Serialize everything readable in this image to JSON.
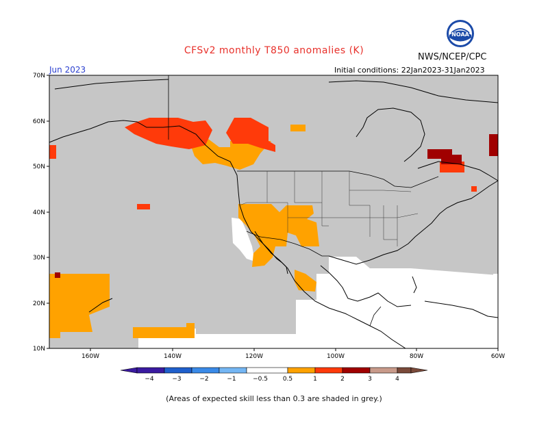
{
  "header": {
    "title": "CFSv2 monthly T850 anomalies (K)",
    "agency": "NWS/NCEP/CPC",
    "month": "Jun 2023",
    "initial_conditions": "Initial conditions: 22Jan2023-31Jan2023",
    "logo_text": "NOAA"
  },
  "map": {
    "lat_labels": [
      "70N",
      "60N",
      "50N",
      "40N",
      "30N",
      "20N",
      "10N"
    ],
    "lon_labels": [
      "160W",
      "140W",
      "120W",
      "100W",
      "80W",
      "60W"
    ],
    "colors": {
      "skill_mask": "#c6c6c6",
      "plus_0_5_1": "#ffa200",
      "plus_1_2": "#ff3a0a",
      "plus_2_3": "#a00000",
      "land_outline": "#000000"
    }
  },
  "legend": {
    "labels": [
      "−4",
      "−3",
      "−2",
      "−1",
      "−0.5",
      "0.5",
      "1",
      "2",
      "3",
      "4"
    ],
    "colors": [
      "#3a1aa0",
      "#1f5fcc",
      "#3a8ae8",
      "#74b6f4",
      "#ffffff",
      "#ffa200",
      "#ff3a0a",
      "#a00000",
      "#c89a8a",
      "#7a4a3a"
    ]
  },
  "footnote": "(Areas of expected skill less than 0.3 are shaded in grey.)"
}
